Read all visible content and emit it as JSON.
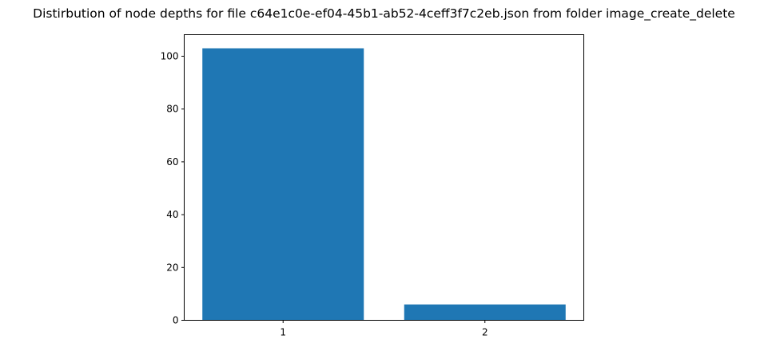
{
  "chart_data": {
    "type": "bar",
    "title": "Distirbution of node depths for file c64e1c0e-ef04-45b1-ab52-4ceff3f7c2eb.json from folder image_create_delete",
    "xlabel": "",
    "ylabel": "",
    "categories": [
      "1",
      "2"
    ],
    "values": [
      103,
      6
    ],
    "ylim": [
      0,
      108.15
    ],
    "yticks": [
      0,
      20,
      40,
      60,
      80,
      100
    ],
    "bar_color": "#1f77b4",
    "grid": false,
    "legend": "none"
  }
}
